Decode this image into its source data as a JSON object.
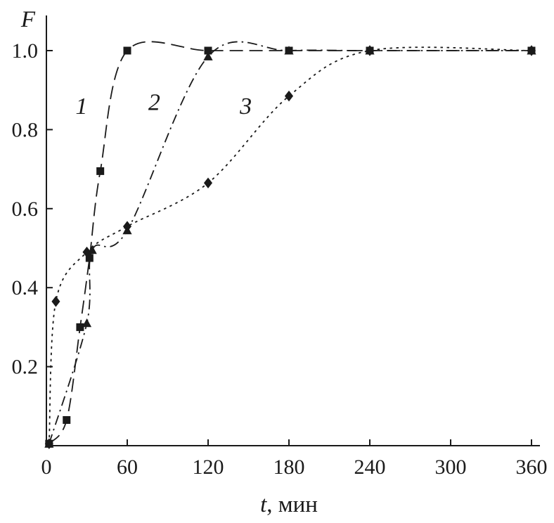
{
  "chart_data": {
    "type": "line",
    "title": "",
    "xlabel": "t, мин",
    "xlabel_parts": [
      {
        "text": "t",
        "italic": true
      },
      {
        "text": ", мин",
        "italic": false
      }
    ],
    "ylabel": "F",
    "xlim": [
      0,
      375
    ],
    "ylim": [
      0,
      1.09
    ],
    "xticks": [
      0,
      60,
      120,
      180,
      240,
      300,
      360
    ],
    "yticks": [
      0.2,
      0.4,
      0.6,
      0.8,
      1.0
    ],
    "grid": false,
    "legend": "none",
    "color": "#1a1a1a",
    "series": [
      {
        "name": "1",
        "marker": "square",
        "linestyle": "dashed",
        "dash": "19 9",
        "x": [
          2,
          15,
          25,
          32,
          40,
          60,
          120,
          180,
          240,
          360
        ],
        "y": [
          0.005,
          0.065,
          0.3,
          0.475,
          0.695,
          1.0,
          1.0,
          1.0,
          1.0,
          1.0
        ]
      },
      {
        "name": "2",
        "marker": "triangle",
        "linestyle": "dash-dot",
        "dash": "14 6 2.5 6",
        "x": [
          2,
          30,
          34,
          60,
          120,
          180,
          240,
          360
        ],
        "y": [
          0.005,
          0.31,
          0.495,
          0.545,
          0.985,
          1.0,
          1.0,
          1.0
        ]
      },
      {
        "name": "3",
        "marker": "diamond",
        "linestyle": "dotted",
        "dash": "3.5 5.5",
        "x": [
          2,
          7,
          30,
          60,
          120,
          180,
          240,
          360
        ],
        "y": [
          0.005,
          0.365,
          0.49,
          0.555,
          0.665,
          0.885,
          1.0,
          1.0
        ]
      }
    ],
    "annotations": [
      {
        "text": "1",
        "t": 26,
        "F": 0.84
      },
      {
        "text": "2",
        "t": 80,
        "F": 0.85
      },
      {
        "text": "3",
        "t": 148,
        "F": 0.84
      }
    ]
  }
}
